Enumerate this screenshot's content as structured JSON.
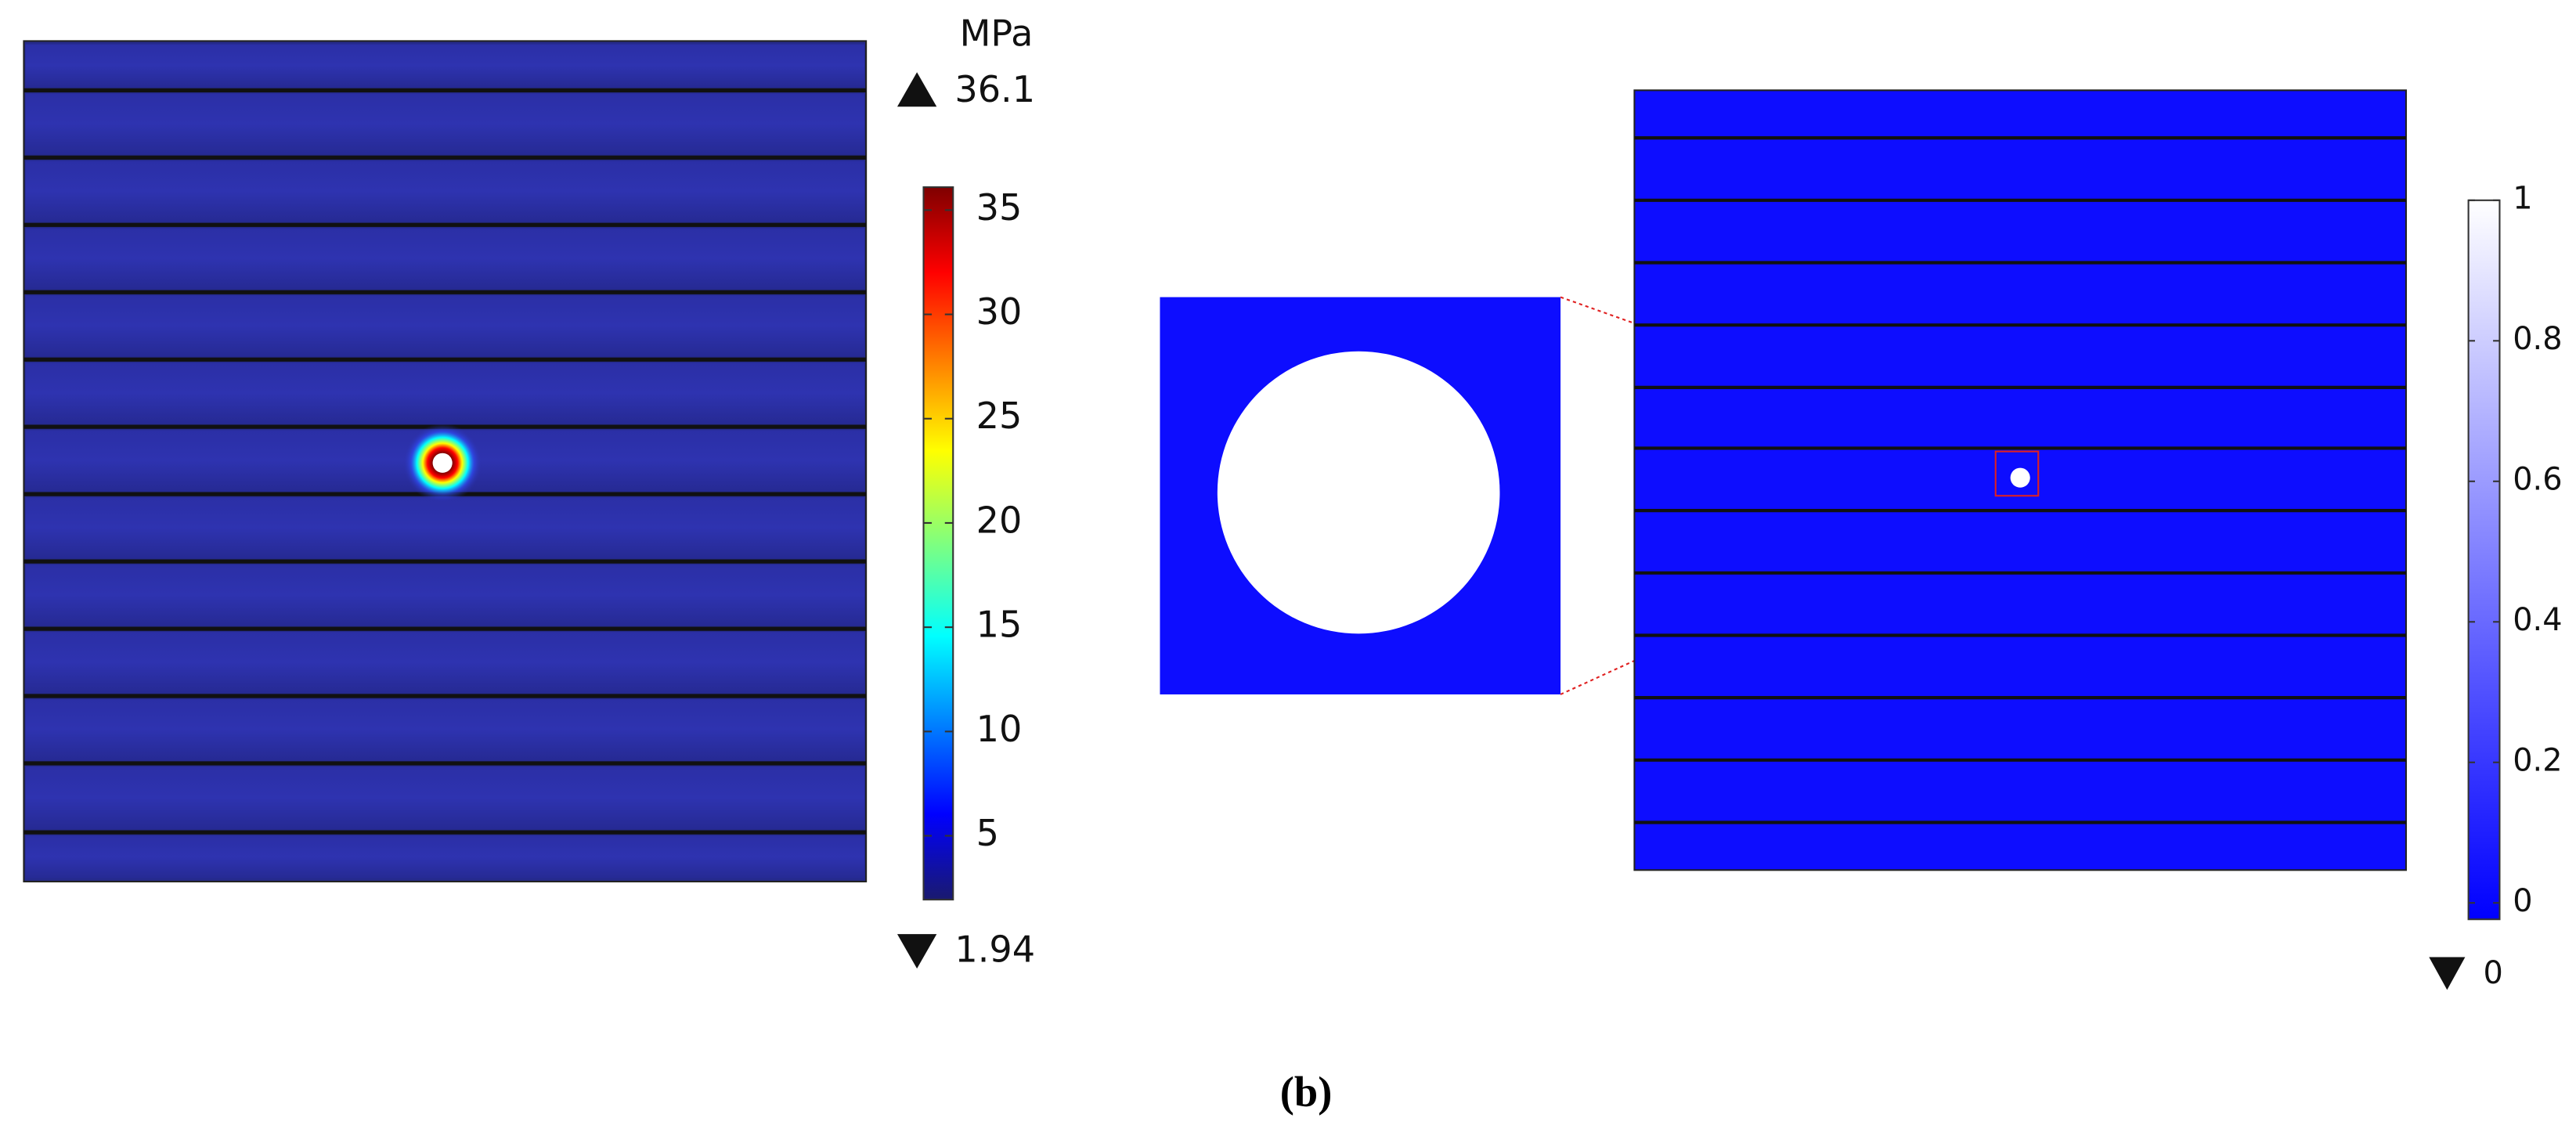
{
  "stress_panel": {
    "unit": "MPa",
    "max": 36.1,
    "min": 1.94,
    "ticks": [
      5,
      10,
      15,
      20,
      25,
      30,
      35
    ]
  },
  "damage_panel": {
    "min": 0,
    "ticks": [
      0,
      0.2,
      0.4,
      0.6,
      0.8,
      1
    ]
  },
  "caption": "(b)"
}
